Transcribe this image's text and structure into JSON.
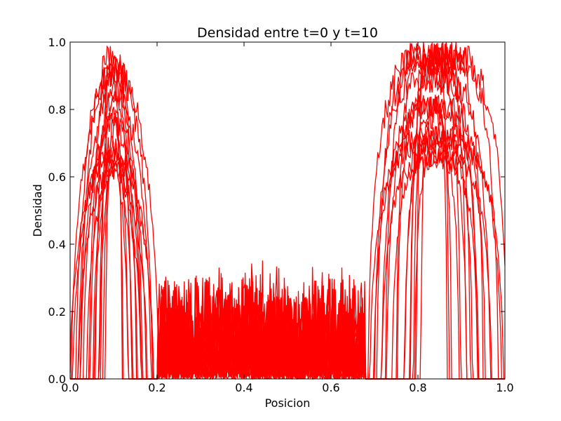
{
  "chart_data": {
    "type": "line",
    "title": "Densidad entre t=0 y t=10",
    "xlabel": "Posicion",
    "ylabel": "Densidad",
    "xlim": [
      0.0,
      1.0
    ],
    "ylim": [
      0.0,
      1.0
    ],
    "xticks": [
      "0.0",
      "0.2",
      "0.4",
      "0.6",
      "0.8",
      "1.0"
    ],
    "yticks": [
      "0.0",
      "0.2",
      "0.4",
      "0.6",
      "0.8",
      "1.0"
    ],
    "grid": false,
    "line_color": "#ff0000",
    "series_count": 20,
    "envelope": {
      "left_bump": {
        "x_start": 0.0,
        "x_end": 0.2,
        "peak_x": 0.1,
        "peak_y": 1.0
      },
      "middle_noise": {
        "x_start": 0.2,
        "x_end": 0.68,
        "max_y": 0.36
      },
      "right_plateau": {
        "x_start": 0.68,
        "x_end": 1.0,
        "peak_x": 0.84,
        "peak_y": 1.0
      }
    }
  }
}
